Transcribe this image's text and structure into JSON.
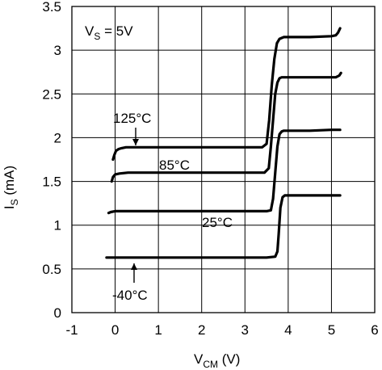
{
  "chart_data": {
    "type": "line",
    "title": "",
    "xlabel": {
      "main": "V",
      "sub": "CM",
      "unit": " (V)"
    },
    "ylabel": {
      "main": "I",
      "sub": "S",
      "unit": " (mA)"
    },
    "xlim": [
      -1,
      6
    ],
    "ylim": [
      0,
      3.5
    ],
    "xticks": [
      -1,
      0,
      1,
      2,
      3,
      4,
      5,
      6
    ],
    "yticks": [
      0,
      0.5,
      1,
      1.5,
      2,
      2.5,
      3,
      3.5
    ],
    "xtick_labels": [
      "-1",
      "0",
      "1",
      "2",
      "3",
      "4",
      "5",
      "6"
    ],
    "ytick_labels": [
      "0",
      "0.5",
      "1",
      "1.5",
      "2",
      "2.5",
      "3",
      "3.5"
    ],
    "grid": true,
    "condition": {
      "main": "V",
      "sub": "S",
      "rest": " = 5V"
    },
    "series": [
      {
        "name": "125°C",
        "x": [
          -0.05,
          -0.02,
          0.02,
          0.08,
          0.15,
          0.25,
          0.5,
          1.0,
          2.0,
          3.0,
          3.4,
          3.5,
          3.56,
          3.62,
          3.68,
          3.74,
          3.8,
          3.9,
          4.0,
          4.5,
          5.0,
          5.1,
          5.15,
          5.2
        ],
        "y": [
          1.75,
          1.8,
          1.85,
          1.87,
          1.88,
          1.89,
          1.89,
          1.89,
          1.89,
          1.89,
          1.89,
          1.93,
          2.2,
          2.6,
          2.9,
          3.08,
          3.13,
          3.15,
          3.15,
          3.15,
          3.16,
          3.17,
          3.2,
          3.25
        ]
      },
      {
        "name": "85°C",
        "x": [
          -0.08,
          -0.05,
          0.0,
          0.1,
          0.3,
          1.0,
          2.0,
          3.0,
          3.45,
          3.55,
          3.6,
          3.65,
          3.7,
          3.75,
          3.8,
          3.85,
          3.9,
          4.0,
          4.5,
          5.0,
          5.1,
          5.18,
          5.22
        ],
        "y": [
          1.5,
          1.55,
          1.58,
          1.59,
          1.6,
          1.6,
          1.6,
          1.6,
          1.6,
          1.65,
          1.9,
          2.2,
          2.5,
          2.63,
          2.68,
          2.69,
          2.69,
          2.69,
          2.69,
          2.69,
          2.69,
          2.71,
          2.74
        ]
      },
      {
        "name": "25°C",
        "x": [
          -0.15,
          -0.1,
          0.0,
          0.5,
          1.0,
          2.0,
          3.0,
          3.5,
          3.6,
          3.65,
          3.7,
          3.75,
          3.8,
          3.85,
          3.9,
          4.0,
          4.5,
          5.0,
          5.2
        ],
        "y": [
          1.14,
          1.15,
          1.16,
          1.16,
          1.16,
          1.16,
          1.16,
          1.16,
          1.17,
          1.3,
          1.6,
          1.9,
          2.04,
          2.07,
          2.08,
          2.08,
          2.08,
          2.09,
          2.09
        ]
      },
      {
        "name": "-40°C",
        "x": [
          -0.2,
          0.0,
          1.0,
          2.0,
          3.0,
          3.5,
          3.7,
          3.75,
          3.78,
          3.82,
          3.87,
          3.92,
          4.0,
          4.5,
          5.0,
          5.2
        ],
        "y": [
          0.63,
          0.63,
          0.63,
          0.63,
          0.63,
          0.63,
          0.64,
          0.7,
          0.9,
          1.2,
          1.32,
          1.34,
          1.34,
          1.34,
          1.34,
          1.34
        ]
      }
    ]
  }
}
